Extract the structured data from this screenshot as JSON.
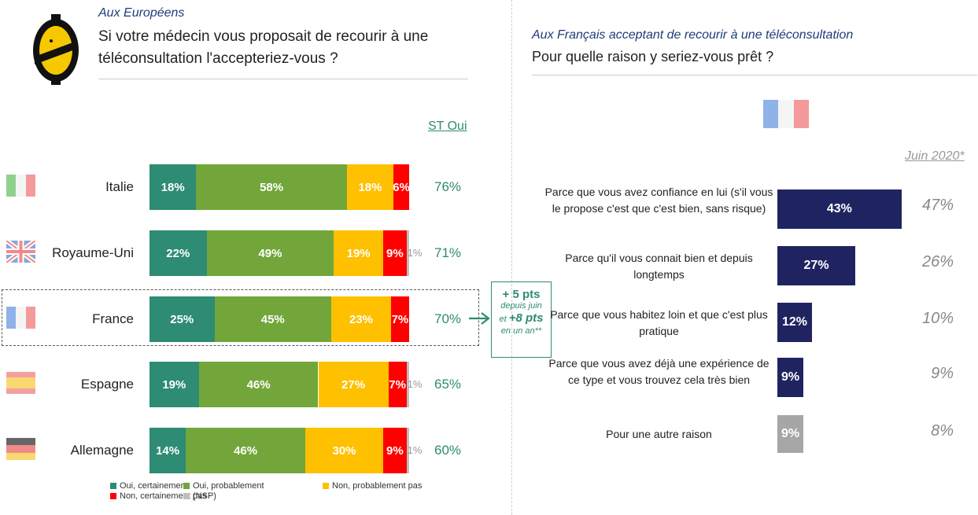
{
  "left": {
    "subtitle": "Aux Européens",
    "question": "Si votre médecin vous proposait de recourir à une téléconsultation l'accepteriez-vous ?",
    "st_header": "ST Oui",
    "callout": {
      "line1": "+ 5 pts",
      "line2": "depuis juin",
      "line3_pre": "et ",
      "line3_bold": "+8 pts",
      "line4": "en un an**"
    }
  },
  "right": {
    "subtitle": "Aux Français acceptant de recourir à une téléconsultation",
    "question": "Pour quelle raison y seriez-vous prêt ?",
    "prev_header": "Juin 2020*"
  },
  "colors": {
    "oui_certainement": "#2e8b74",
    "oui_probablement": "#72a63a",
    "non_probablement_pas": "#ffc000",
    "non_certainement_pas": "#ff0000",
    "nsp": "#bfbfbf",
    "reason_bar": "#1f2461",
    "reason_other": "#a6a6a6",
    "accent": "#2e8b74"
  },
  "chart_data": [
    {
      "type": "bar",
      "orientation": "horizontal",
      "stacked": true,
      "categories": [
        "Italie",
        "Royaume-Uni",
        "France",
        "Espagne",
        "Allemagne"
      ],
      "series": [
        {
          "name": "Oui, certainement",
          "values": [
            18,
            22,
            25,
            19,
            14
          ]
        },
        {
          "name": "Oui, probablement",
          "values": [
            58,
            49,
            45,
            46,
            46
          ]
        },
        {
          "name": "Non, probablement pas",
          "values": [
            18,
            19,
            23,
            27,
            30
          ]
        },
        {
          "name": "Non, certainement pas",
          "values": [
            6,
            9,
            7,
            7,
            9
          ]
        },
        {
          "name": "(NSP)",
          "values": [
            null,
            1,
            null,
            1,
            1
          ]
        }
      ],
      "st_oui": [
        76,
        71,
        70,
        65,
        60
      ],
      "legend_position": "bottom"
    },
    {
      "type": "bar",
      "orientation": "horizontal",
      "categories": [
        "Parce que vous avez confiance en lui (s'il vous le propose c'est que c'est bien, sans risque)",
        "Parce qu'il vous connait bien et depuis longtemps",
        "Parce que vous habitez loin et que c'est plus pratique",
        "Parce que vous avez déjà une expérience de ce type et vous trouvez cela très bien",
        "Pour une autre raison"
      ],
      "values": [
        43,
        27,
        12,
        9,
        9
      ],
      "juin_2020": [
        47,
        26,
        10,
        9,
        8
      ]
    }
  ]
}
